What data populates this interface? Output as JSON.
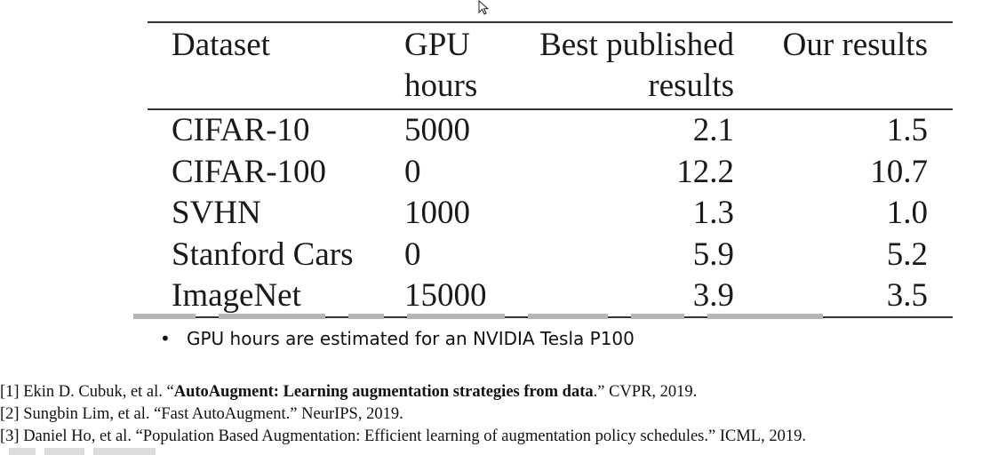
{
  "table": {
    "headers": {
      "dataset": "Dataset",
      "gpu_line1": "GPU",
      "gpu_line2": "hours",
      "best_line1": "Best published",
      "best_line2": "results",
      "ours": "Our results"
    },
    "rows": [
      {
        "dataset": "CIFAR-10",
        "gpu": "5000",
        "best": "2.1",
        "ours": "1.5"
      },
      {
        "dataset": "CIFAR-100",
        "gpu": "0",
        "best": "12.2",
        "ours": "10.7"
      },
      {
        "dataset": "SVHN",
        "gpu": "1000",
        "best": "1.3",
        "ours": "1.0"
      },
      {
        "dataset": "Stanford Cars",
        "gpu": "0",
        "best": "5.9",
        "ours": "5.2"
      },
      {
        "dataset": "ImageNet",
        "gpu": "15000",
        "best": "3.9",
        "ours": "3.5"
      }
    ]
  },
  "note": {
    "bullet": "•",
    "text": "GPU hours are estimated for an NVIDIA Tesla P100"
  },
  "references": [
    {
      "pre": "[1] Ekin D. Cubuk, et al. “",
      "bold": "AutoAugment: Learning augmentation strategies from data",
      "post": ".” CVPR, 2019."
    },
    {
      "pre": "[2] Sungbin  Lim, et al. “Fast AutoAugment.” NeurIPS, 2019.",
      "bold": "",
      "post": ""
    },
    {
      "pre": "[3] Daniel Ho, et al. “Population Based Augmentation: Efficient learning of augmentation policy schedules.” ICML, 2019.",
      "bold": "",
      "post": ""
    }
  ],
  "icons": {
    "cursor": "mouse-pointer-icon"
  }
}
